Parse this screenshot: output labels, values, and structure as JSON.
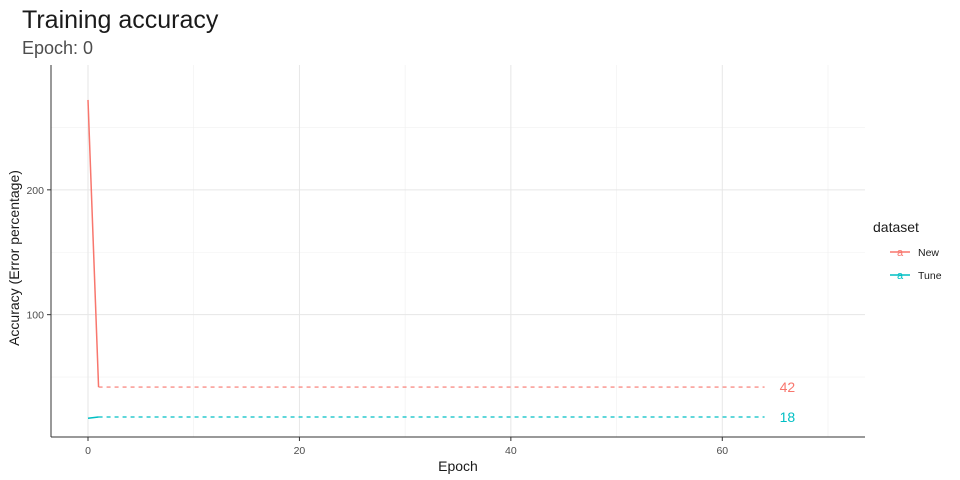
{
  "chart_data": {
    "type": "line",
    "title": "Training accuracy",
    "subtitle": "Epoch: 0",
    "xlabel": "Epoch",
    "ylabel": "Accuracy (Error percentage)",
    "xlim": [
      -3.5,
      73.5
    ],
    "ylim": [
      2,
      300
    ],
    "x_ticks": [
      0,
      20,
      40,
      60
    ],
    "y_ticks": [
      100,
      200
    ],
    "grid": true,
    "legend": {
      "title": "dataset",
      "position": "right",
      "key_glyph": "a"
    },
    "series": [
      {
        "name": "New",
        "color": "#F8766D",
        "points": [
          [
            0,
            272
          ],
          [
            1,
            42
          ]
        ],
        "projection": {
          "x_start": 1,
          "x_end": 64,
          "y": 42,
          "style": "dashed"
        },
        "end_label": "42"
      },
      {
        "name": "Tune",
        "color": "#00BFC4",
        "points": [
          [
            0,
            17
          ],
          [
            1,
            18
          ]
        ],
        "projection": {
          "x_start": 1,
          "x_end": 64,
          "y": 18,
          "style": "dashed"
        },
        "end_label": "18"
      }
    ]
  }
}
